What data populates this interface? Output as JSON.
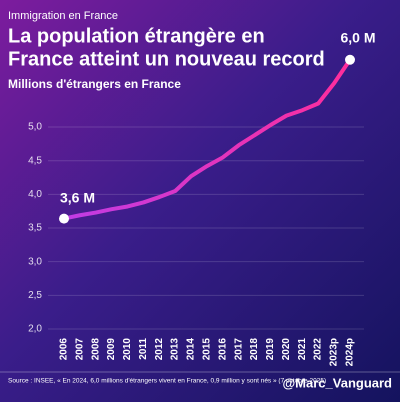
{
  "chart_data": {
    "type": "line",
    "supertitle": "Immigration en France",
    "title": [
      "La population étrangère en",
      "France atteint un nouveau record"
    ],
    "subtitle": "Millions d'étrangers en France",
    "categories": [
      "2006",
      "2007",
      "2008",
      "2009",
      "2010",
      "2011",
      "2012",
      "2013",
      "2014",
      "2015",
      "2016",
      "2017",
      "2018",
      "2019",
      "2020",
      "2021",
      "2022",
      "2023p",
      "2024p"
    ],
    "values": [
      3.64,
      3.69,
      3.73,
      3.78,
      3.82,
      3.88,
      3.96,
      4.05,
      4.27,
      4.42,
      4.55,
      4.73,
      4.88,
      5.03,
      5.17,
      5.25,
      5.35,
      5.65,
      6.0
    ],
    "value_labels": [
      "3,6 M",
      null,
      null,
      null,
      null,
      null,
      null,
      null,
      null,
      null,
      null,
      null,
      null,
      null,
      null,
      null,
      null,
      null,
      "6,0 M"
    ],
    "color": [
      "#c03ce6",
      "#ff2d9b"
    ],
    "ylim": [
      2,
      6.1
    ],
    "yticks": [
      {
        "value": 2,
        "label": "2,0"
      },
      {
        "value": 2.5,
        "label": "2,5"
      },
      {
        "value": 3,
        "label": "3,0"
      },
      {
        "value": 3.5,
        "label": "3,5"
      },
      {
        "value": 4,
        "label": "4,0"
      },
      {
        "value": 4.5,
        "label": "4,5"
      },
      {
        "value": 5,
        "label": "5,0"
      }
    ],
    "grid": true,
    "source": "Source : INSEE, « En 2024, 6,0 millions d'étrangers vivent en France, 0,9 million y sont nés » (7 octobre 2025)",
    "credit": "@Marc_Vanguard"
  }
}
